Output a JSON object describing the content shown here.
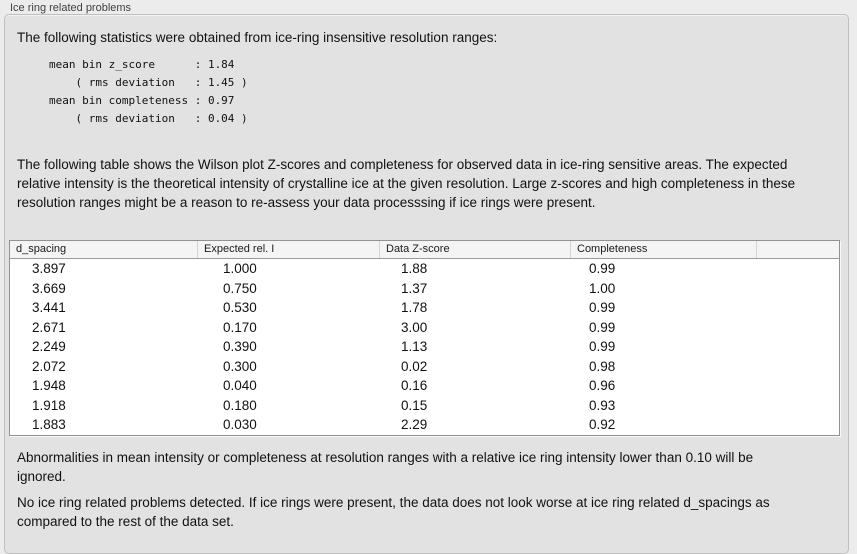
{
  "panel": {
    "title": "Ice ring related problems"
  },
  "stats": {
    "intro": "The following statistics were obtained from ice-ring insensitive resolution ranges:",
    "lines": [
      "mean bin z_score      : 1.84",
      "    ( rms deviation   : 1.45 )",
      "mean bin completeness : 0.97",
      "    ( rms deviation   : 0.04 )"
    ]
  },
  "description": "The following table shows the Wilson plot Z-scores and completeness for observed data in ice-ring sensitive areas. The expected relative intensity is the theoretical intensity of crystalline ice at the given resolution. Large z-scores and high completeness in these resolution ranges might be a reason to re-assess your data processsing if ice rings were present.",
  "table": {
    "columns": [
      "d_spacing",
      "Expected rel. I",
      "Data Z-score",
      "Completeness"
    ],
    "rows": [
      [
        "3.897",
        "1.000",
        "1.88",
        "0.99"
      ],
      [
        "3.669",
        "0.750",
        "1.37",
        "1.00"
      ],
      [
        "3.441",
        "0.530",
        "1.78",
        "0.99"
      ],
      [
        "2.671",
        "0.170",
        "3.00",
        "0.99"
      ],
      [
        "2.249",
        "0.390",
        "1.13",
        "0.99"
      ],
      [
        "2.072",
        "0.300",
        "0.02",
        "0.98"
      ],
      [
        "1.948",
        "0.040",
        "0.16",
        "0.96"
      ],
      [
        "1.918",
        "0.180",
        "0.15",
        "0.93"
      ],
      [
        "1.883",
        "0.030",
        "2.29",
        "0.92"
      ]
    ]
  },
  "notes": {
    "ignored": "Abnormalities in mean intensity or completeness at resolution ranges with a relative ice ring intensity lower than 0.10 will be ignored.",
    "conclusion": "No ice ring related problems detected. If ice rings were present, the data does not look worse at ice ring related d_spacings as compared to the rest of the data set."
  }
}
